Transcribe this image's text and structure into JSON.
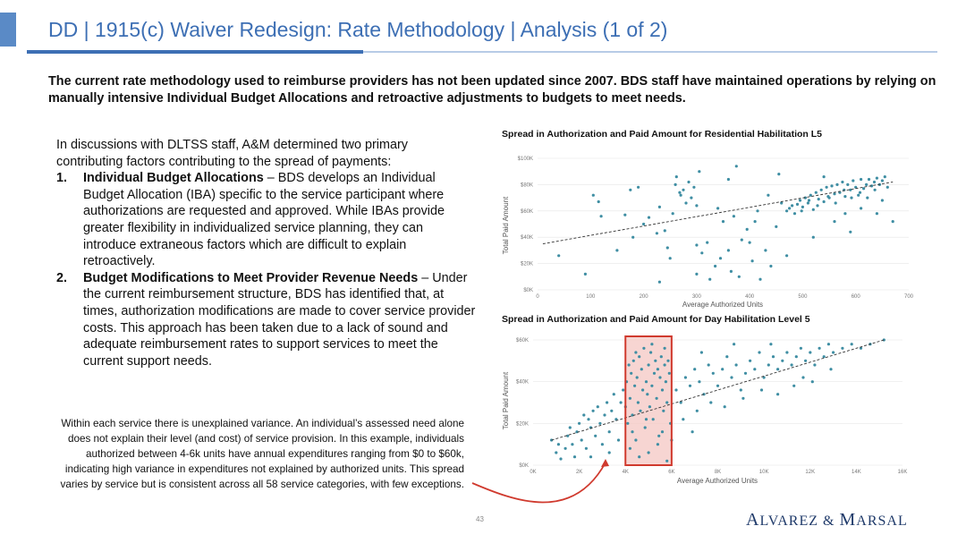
{
  "title": "DD | 1915(c) Waiver Redesign: Rate Methodology | Analysis (1 of 2)",
  "summary": "The current rate methodology used to reimburse providers has not been updated since 2007. BDS staff have maintained operations by relying on manually intensive Individual Budget Allocations and retroactive adjustments to budgets to meet needs.",
  "body": {
    "intro": "In discussions with DLTSS staff, A&M determined two primary contributing factors contributing to the spread of payments:",
    "items": [
      {
        "number": "1.",
        "heading": "Individual Budget Allocations",
        "text": " – BDS develops an Individual Budget Allocation (IBA) specific to the service participant where authorizations are requested and approved. While IBAs provide greater flexibility in individualized service planning, they can introduce extraneous factors which are difficult to explain retroactively."
      },
      {
        "number": "2.",
        "heading": "Budget Modifications to Meet Provider Revenue Needs",
        "text": " – Under the current reimbursement structure, BDS has identified that, at times, authorization modifications are made to cover service provider costs. This approach has been taken due to a lack of sound and adequate reimbursement rates to support services to meet the current support needs."
      }
    ]
  },
  "note": "Within each service there is unexplained variance. An individual’s assessed need alone does not explain their level (and cost) of service provision. In this example, individuals authorized between 4-6k units have annual expenditures ranging from $0 to $60k, indicating high variance in expenditures not explained by authorized units. This spread varies by service but is consistent across all 58 service categories, with few exceptions.",
  "page_number": "43",
  "logo": {
    "text": "ALVAREZ & MARSAL",
    "w1_cap": "A",
    "w1_rest": "LVAREZ",
    "amp": "&",
    "w2_cap": "M",
    "w2_rest": "ARSAL"
  },
  "colors": {
    "title": "#3d6fb4",
    "points": "#3f8ea3",
    "highlight_border": "#d03a2e",
    "highlight_fill": "#f4c7c3",
    "arrow": "#d03a2e"
  },
  "chart_data": [
    {
      "type": "scatter",
      "title": "Spread in Authorization and Paid Amount for Residential Habilitation L5",
      "xlabel": "Average Authorized Units",
      "ylabel": "Total Paid Amount",
      "xlim": [
        0,
        700
      ],
      "ylim": [
        0,
        100000
      ],
      "x_ticks": [
        "0",
        "100",
        "200",
        "300",
        "400",
        "500",
        "600",
        "700"
      ],
      "y_ticks": [
        "$0K",
        "$20K",
        "$40K",
        "$60K",
        "$80K",
        "$100K"
      ],
      "trendline": {
        "style": "dashed",
        "from": [
          10,
          35000
        ],
        "to": [
          670,
          82000
        ]
      },
      "points": [
        [
          40,
          26000
        ],
        [
          90,
          12000
        ],
        [
          105,
          72000
        ],
        [
          115,
          67000
        ],
        [
          120,
          56000
        ],
        [
          165,
          57000
        ],
        [
          175,
          76000
        ],
        [
          190,
          78000
        ],
        [
          200,
          50000
        ],
        [
          210,
          55000
        ],
        [
          225,
          43000
        ],
        [
          230,
          63000
        ],
        [
          240,
          45000
        ],
        [
          245,
          32000
        ],
        [
          250,
          24000
        ],
        [
          255,
          58000
        ],
        [
          260,
          80000
        ],
        [
          262,
          86000
        ],
        [
          268,
          74000
        ],
        [
          270,
          72000
        ],
        [
          275,
          76000
        ],
        [
          280,
          66000
        ],
        [
          285,
          82000
        ],
        [
          290,
          70000
        ],
        [
          295,
          78000
        ],
        [
          300,
          64000
        ],
        [
          305,
          90000
        ],
        [
          300,
          12000
        ],
        [
          310,
          28000
        ],
        [
          320,
          36000
        ],
        [
          325,
          8000
        ],
        [
          335,
          18000
        ],
        [
          345,
          24000
        ],
        [
          350,
          52000
        ],
        [
          360,
          30000
        ],
        [
          365,
          14000
        ],
        [
          370,
          56000
        ],
        [
          375,
          94000
        ],
        [
          385,
          38000
        ],
        [
          395,
          46000
        ],
        [
          400,
          36000
        ],
        [
          405,
          22000
        ],
        [
          410,
          52000
        ],
        [
          415,
          60000
        ],
        [
          420,
          8000
        ],
        [
          430,
          30000
        ],
        [
          435,
          72000
        ],
        [
          450,
          48000
        ],
        [
          455,
          88000
        ],
        [
          460,
          66000
        ],
        [
          470,
          60000
        ],
        [
          475,
          62000
        ],
        [
          480,
          64000
        ],
        [
          485,
          58000
        ],
        [
          490,
          65000
        ],
        [
          495,
          68000
        ],
        [
          500,
          63000
        ],
        [
          505,
          70000
        ],
        [
          510,
          66000
        ],
        [
          515,
          72000
        ],
        [
          520,
          61000
        ],
        [
          525,
          74000
        ],
        [
          530,
          69000
        ],
        [
          535,
          76000
        ],
        [
          540,
          67000
        ],
        [
          545,
          78000
        ],
        [
          550,
          70000
        ],
        [
          555,
          79000
        ],
        [
          560,
          73000
        ],
        [
          565,
          80000
        ],
        [
          570,
          74000
        ],
        [
          575,
          82000
        ],
        [
          580,
          71000
        ],
        [
          585,
          80000
        ],
        [
          590,
          76000
        ],
        [
          595,
          83000
        ],
        [
          600,
          78000
        ],
        [
          605,
          72000
        ],
        [
          610,
          84000
        ],
        [
          615,
          77000
        ],
        [
          620,
          80000
        ],
        [
          625,
          84000
        ],
        [
          630,
          79000
        ],
        [
          635,
          82000
        ],
        [
          640,
          85000
        ],
        [
          645,
          80000
        ],
        [
          650,
          83000
        ],
        [
          655,
          86000
        ],
        [
          660,
          78000
        ],
        [
          498,
          60000
        ],
        [
          512,
          68000
        ],
        [
          528,
          64000
        ],
        [
          548,
          71000
        ],
        [
          562,
          66000
        ],
        [
          578,
          76000
        ],
        [
          592,
          70000
        ],
        [
          608,
          74000
        ],
        [
          622,
          70000
        ],
        [
          636,
          76000
        ],
        [
          180,
          40000
        ],
        [
          150,
          30000
        ],
        [
          340,
          62000
        ],
        [
          360,
          84000
        ],
        [
          380,
          10000
        ],
        [
          440,
          18000
        ],
        [
          560,
          52000
        ],
        [
          590,
          44000
        ],
        [
          610,
          62000
        ],
        [
          640,
          58000
        ],
        [
          650,
          68000
        ],
        [
          670,
          52000
        ],
        [
          540,
          86000
        ],
        [
          300,
          34000
        ],
        [
          230,
          6000
        ],
        [
          470,
          26000
        ],
        [
          520,
          40000
        ],
        [
          580,
          58000
        ]
      ]
    },
    {
      "type": "scatter",
      "title": "Spread in Authorization and Paid Amount for Day Habilitation Level 5",
      "xlabel": "Average Authorized Units",
      "ylabel": "Total Paid Amount",
      "xlim": [
        0,
        16000
      ],
      "ylim": [
        0,
        60000
      ],
      "x_ticks": [
        "0K",
        "2K",
        "4K",
        "6K",
        "8K",
        "10K",
        "12K",
        "14K",
        "16K"
      ],
      "y_ticks": [
        "$0K",
        "$20K",
        "$40K",
        "$60K"
      ],
      "highlight_range": [
        4000,
        6000
      ],
      "trendline": {
        "style": "dashed",
        "from": [
          800,
          12000
        ],
        "to": [
          15200,
          60000
        ]
      },
      "points": [
        [
          800,
          12000
        ],
        [
          1000,
          6000
        ],
        [
          1200,
          3000
        ],
        [
          1400,
          8000
        ],
        [
          1500,
          14000
        ],
        [
          1600,
          18000
        ],
        [
          1700,
          10000
        ],
        [
          1800,
          4000
        ],
        [
          1900,
          16000
        ],
        [
          2000,
          20000
        ],
        [
          2100,
          12000
        ],
        [
          2200,
          24000
        ],
        [
          2300,
          8000
        ],
        [
          2400,
          22000
        ],
        [
          2500,
          18000
        ],
        [
          2600,
          26000
        ],
        [
          2700,
          14000
        ],
        [
          2800,
          28000
        ],
        [
          2900,
          20000
        ],
        [
          3000,
          10000
        ],
        [
          3100,
          24000
        ],
        [
          3200,
          30000
        ],
        [
          3300,
          16000
        ],
        [
          3400,
          26000
        ],
        [
          3500,
          34000
        ],
        [
          3600,
          22000
        ],
        [
          3700,
          12000
        ],
        [
          3800,
          30000
        ],
        [
          3900,
          36000
        ],
        [
          4000,
          28000
        ],
        [
          4050,
          40000
        ],
        [
          4100,
          20000
        ],
        [
          4150,
          48000
        ],
        [
          4200,
          32000
        ],
        [
          4250,
          44000
        ],
        [
          4300,
          24000
        ],
        [
          4350,
          50000
        ],
        [
          4400,
          38000
        ],
        [
          4450,
          12000
        ],
        [
          4500,
          42000
        ],
        [
          4550,
          30000
        ],
        [
          4600,
          52000
        ],
        [
          4650,
          26000
        ],
        [
          4700,
          46000
        ],
        [
          4750,
          36000
        ],
        [
          4800,
          56000
        ],
        [
          4850,
          18000
        ],
        [
          4900,
          40000
        ],
        [
          4950,
          34000
        ],
        [
          5000,
          48000
        ],
        [
          5050,
          28000
        ],
        [
          5100,
          54000
        ],
        [
          5150,
          38000
        ],
        [
          5200,
          22000
        ],
        [
          5250,
          44000
        ],
        [
          5300,
          50000
        ],
        [
          5350,
          32000
        ],
        [
          5400,
          46000
        ],
        [
          5450,
          14000
        ],
        [
          5500,
          42000
        ],
        [
          5550,
          52000
        ],
        [
          5600,
          36000
        ],
        [
          5650,
          26000
        ],
        [
          5700,
          48000
        ],
        [
          5750,
          40000
        ],
        [
          5800,
          30000
        ],
        [
          5850,
          50000
        ],
        [
          5900,
          44000
        ],
        [
          5950,
          20000
        ],
        [
          4200,
          8000
        ],
        [
          4600,
          4000
        ],
        [
          5000,
          6000
        ],
        [
          5400,
          10000
        ],
        [
          5800,
          2000
        ],
        [
          4300,
          16000
        ],
        [
          4900,
          22000
        ],
        [
          5600,
          16000
        ],
        [
          4450,
          54000
        ],
        [
          5150,
          58000
        ],
        [
          5700,
          56000
        ],
        [
          6200,
          36000
        ],
        [
          6400,
          30000
        ],
        [
          6600,
          42000
        ],
        [
          6800,
          38000
        ],
        [
          7000,
          46000
        ],
        [
          7200,
          40000
        ],
        [
          7400,
          34000
        ],
        [
          7600,
          48000
        ],
        [
          7800,
          44000
        ],
        [
          8000,
          38000
        ],
        [
          8200,
          46000
        ],
        [
          8400,
          52000
        ],
        [
          8600,
          42000
        ],
        [
          8800,
          48000
        ],
        [
          9000,
          36000
        ],
        [
          9200,
          44000
        ],
        [
          9400,
          50000
        ],
        [
          9600,
          46000
        ],
        [
          9800,
          54000
        ],
        [
          10000,
          42000
        ],
        [
          10200,
          48000
        ],
        [
          10400,
          52000
        ],
        [
          10600,
          46000
        ],
        [
          10800,
          50000
        ],
        [
          11000,
          54000
        ],
        [
          11200,
          48000
        ],
        [
          11400,
          52000
        ],
        [
          11600,
          56000
        ],
        [
          11800,
          50000
        ],
        [
          12000,
          54000
        ],
        [
          12200,
          48000
        ],
        [
          12400,
          56000
        ],
        [
          12600,
          52000
        ],
        [
          12800,
          58000
        ],
        [
          13000,
          54000
        ],
        [
          13400,
          56000
        ],
        [
          13800,
          58000
        ],
        [
          14200,
          56000
        ],
        [
          14600,
          58000
        ],
        [
          15200,
          60000
        ],
        [
          6500,
          22000
        ],
        [
          7100,
          26000
        ],
        [
          7700,
          30000
        ],
        [
          8300,
          28000
        ],
        [
          9100,
          32000
        ],
        [
          9900,
          36000
        ],
        [
          10600,
          34000
        ],
        [
          11300,
          38000
        ],
        [
          12100,
          40000
        ],
        [
          7300,
          54000
        ],
        [
          8700,
          58000
        ],
        [
          10300,
          58000
        ],
        [
          11700,
          42000
        ],
        [
          12900,
          46000
        ],
        [
          6000,
          12000
        ],
        [
          6900,
          16000
        ],
        [
          3300,
          6000
        ],
        [
          2500,
          4000
        ],
        [
          1100,
          10000
        ]
      ]
    }
  ]
}
